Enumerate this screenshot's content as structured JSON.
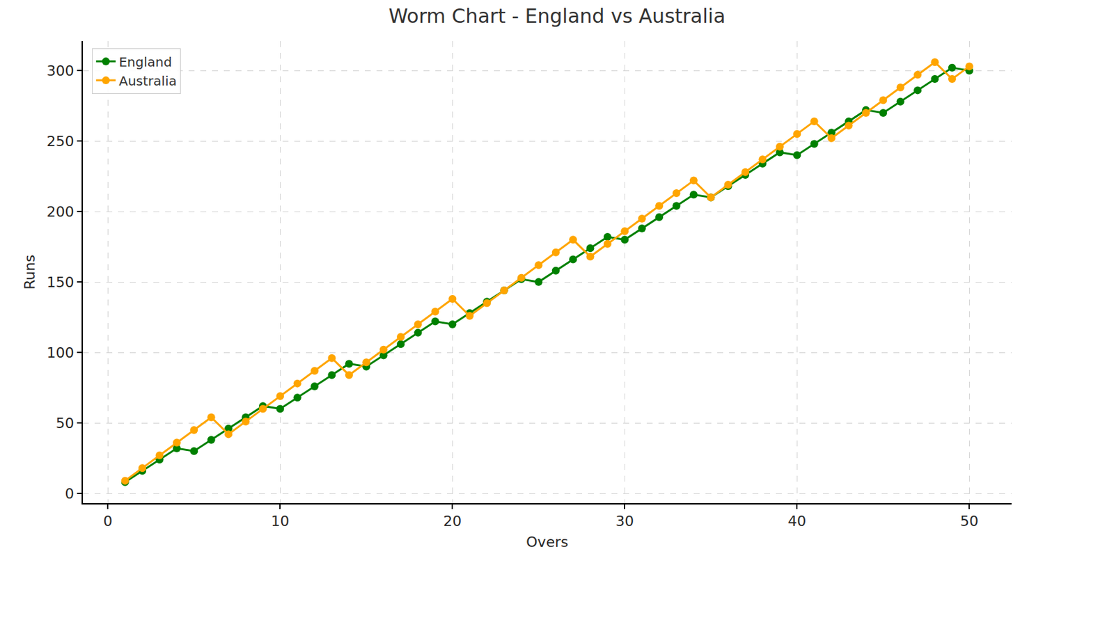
{
  "chart_data": {
    "type": "line",
    "title": "Worm Chart - England vs Australia",
    "x_label": "Overs",
    "y_label": "Runs",
    "x": [
      1,
      2,
      3,
      4,
      5,
      6,
      7,
      8,
      9,
      10,
      11,
      12,
      13,
      14,
      15,
      16,
      17,
      18,
      19,
      20,
      21,
      22,
      23,
      24,
      25,
      26,
      27,
      28,
      29,
      30,
      31,
      32,
      33,
      34,
      35,
      36,
      37,
      38,
      39,
      40,
      41,
      42,
      43,
      44,
      45,
      46,
      47,
      48,
      49,
      50
    ],
    "series": [
      {
        "name": "England",
        "color": "#008000",
        "marker": "circle",
        "values": [
          8,
          16,
          24,
          32,
          30,
          38,
          46,
          54,
          62,
          60,
          68,
          76,
          84,
          92,
          90,
          98,
          106,
          114,
          122,
          120,
          128,
          136,
          144,
          152,
          150,
          158,
          166,
          174,
          182,
          180,
          188,
          196,
          204,
          212,
          210,
          218,
          226,
          234,
          242,
          240,
          248,
          256,
          264,
          272,
          270,
          278,
          286,
          294,
          302,
          300
        ]
      },
      {
        "name": "Australia",
        "color": "#ffa500",
        "marker": "circle",
        "values": [
          9,
          18,
          27,
          36,
          45,
          54,
          42,
          51,
          60,
          69,
          78,
          87,
          96,
          84,
          93,
          102,
          111,
          120,
          129,
          138,
          126,
          135,
          144,
          153,
          162,
          171,
          180,
          168,
          177,
          186,
          195,
          204,
          213,
          222,
          210,
          219,
          228,
          237,
          246,
          255,
          264,
          252,
          261,
          270,
          279,
          288,
          297,
          306,
          294,
          303
        ]
      }
    ],
    "xlim": [
      -1.45,
      52.45
    ],
    "xticks": [
      0,
      10,
      20,
      30,
      40,
      50
    ],
    "ylim": [
      -6.9,
      320.9
    ],
    "yticks": [
      0,
      50,
      100,
      150,
      200,
      250,
      300
    ],
    "grid": true,
    "legend": "upper left"
  }
}
